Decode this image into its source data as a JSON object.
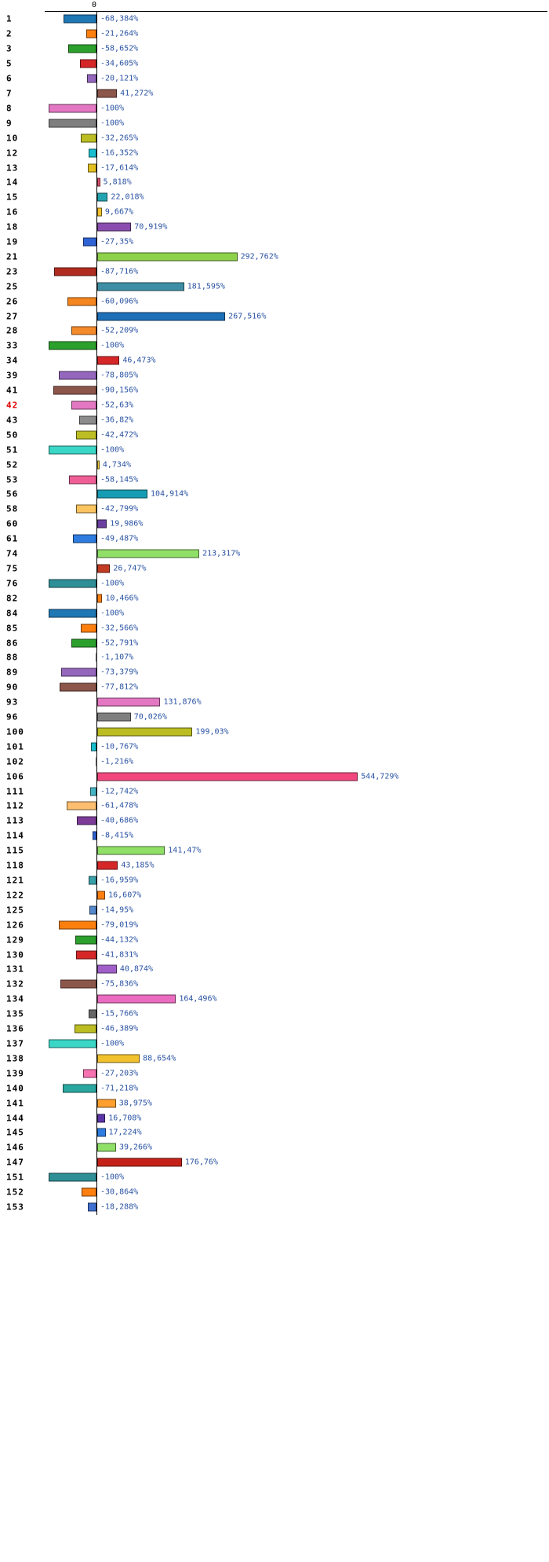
{
  "chart_data": {
    "type": "bar",
    "orientation": "horizontal",
    "title": "",
    "xlabel": "",
    "ylabel": "",
    "unit": "%",
    "axis_zero_label": "0",
    "grid": false,
    "legend": false,
    "value_label_color": "#2952a3",
    "rows": [
      {
        "label": "1",
        "value": -68.384,
        "display": "-68,384%",
        "color": "#1f77b4"
      },
      {
        "label": "2",
        "value": -21.264,
        "display": "-21,264%",
        "color": "#ff7f0e"
      },
      {
        "label": "3",
        "value": -58.652,
        "display": "-58,652%",
        "color": "#2ca02c"
      },
      {
        "label": "5",
        "value": -34.605,
        "display": "-34,605%",
        "color": "#d62728"
      },
      {
        "label": "6",
        "value": -20.121,
        "display": "-20,121%",
        "color": "#9467bd"
      },
      {
        "label": "7",
        "value": 41.272,
        "display": "41,272%",
        "color": "#8c564b"
      },
      {
        "label": "8",
        "value": -100,
        "display": "-100%",
        "color": "#e377c2"
      },
      {
        "label": "9",
        "value": -100,
        "display": "-100%",
        "color": "#7f7f7f"
      },
      {
        "label": "10",
        "value": -32.265,
        "display": "-32,265%",
        "color": "#bcbd22"
      },
      {
        "label": "12",
        "value": -16.352,
        "display": "-16,352%",
        "color": "#17becf"
      },
      {
        "label": "13",
        "value": -17.614,
        "display": "-17,614%",
        "color": "#e3c01f"
      },
      {
        "label": "14",
        "value": 5.818,
        "display": "5,818%",
        "color": "#e0506e"
      },
      {
        "label": "15",
        "value": 22.018,
        "display": "22,018%",
        "color": "#22a5b0"
      },
      {
        "label": "16",
        "value": 9.667,
        "display": "9,667%",
        "color": "#f2c12e"
      },
      {
        "label": "18",
        "value": 70.919,
        "display": "70,919%",
        "color": "#8a4caf"
      },
      {
        "label": "19",
        "value": -27.35,
        "display": "-27,35%",
        "color": "#2f63d6"
      },
      {
        "label": "21",
        "value": 292.762,
        "display": "292,762%",
        "color": "#8ed14a"
      },
      {
        "label": "23",
        "value": -87.716,
        "display": "-87,716%",
        "color": "#b02c20"
      },
      {
        "label": "25",
        "value": 181.595,
        "display": "181,595%",
        "color": "#3e8fa5"
      },
      {
        "label": "26",
        "value": -60.096,
        "display": "-60,096%",
        "color": "#f5861f"
      },
      {
        "label": "27",
        "value": 267.516,
        "display": "267,516%",
        "color": "#1d6fb8"
      },
      {
        "label": "28",
        "value": -52.209,
        "display": "-52,209%",
        "color": "#f58a2a"
      },
      {
        "label": "33",
        "value": -100,
        "display": "-100%",
        "color": "#2ca02c"
      },
      {
        "label": "34",
        "value": 46.473,
        "display": "46,473%",
        "color": "#d62728"
      },
      {
        "label": "39",
        "value": -78.805,
        "display": "-78,805%",
        "color": "#9467bd"
      },
      {
        "label": "41",
        "value": -90.156,
        "display": "-90,156%",
        "color": "#8c564b"
      },
      {
        "label": "42",
        "value": -52.63,
        "display": "-52,63%",
        "color": "#e377c2",
        "label_color": "#dd0000"
      },
      {
        "label": "43",
        "value": -36.82,
        "display": "-36,82%",
        "color": "#8c8c8c"
      },
      {
        "label": "50",
        "value": -42.472,
        "display": "-42,472%",
        "color": "#bcbd22"
      },
      {
        "label": "51",
        "value": -100,
        "display": "-100%",
        "color": "#3ad6c6"
      },
      {
        "label": "52",
        "value": 4.734,
        "display": "4,734%",
        "color": "#e8c93a"
      },
      {
        "label": "53",
        "value": -58.145,
        "display": "-58,145%",
        "color": "#ef5f95"
      },
      {
        "label": "56",
        "value": 104.914,
        "display": "104,914%",
        "color": "#169db3"
      },
      {
        "label": "58",
        "value": -42.799,
        "display": "-42,799%",
        "color": "#fcc45f"
      },
      {
        "label": "60",
        "value": 19.986,
        "display": "19,986%",
        "color": "#6a3fa0"
      },
      {
        "label": "61",
        "value": -49.487,
        "display": "-49,487%",
        "color": "#2e7ce0"
      },
      {
        "label": "74",
        "value": 213.317,
        "display": "213,317%",
        "color": "#90e068"
      },
      {
        "label": "75",
        "value": 26.747,
        "display": "26,747%",
        "color": "#c23b22"
      },
      {
        "label": "76",
        "value": -100,
        "display": "-100%",
        "color": "#2e8f96"
      },
      {
        "label": "82",
        "value": 10.466,
        "display": "10,466%",
        "color": "#ff7f0e"
      },
      {
        "label": "84",
        "value": -100,
        "display": "-100%",
        "color": "#1f77b4"
      },
      {
        "label": "85",
        "value": -32.566,
        "display": "-32,566%",
        "color": "#ff7f0e"
      },
      {
        "label": "86",
        "value": -52.791,
        "display": "-52,791%",
        "color": "#2ca02c"
      },
      {
        "label": "88",
        "value": -1.107,
        "display": "-1,107%",
        "color": "#999999"
      },
      {
        "label": "89",
        "value": -73.379,
        "display": "-73,379%",
        "color": "#9467bd"
      },
      {
        "label": "90",
        "value": -77.812,
        "display": "-77,812%",
        "color": "#8c564b"
      },
      {
        "label": "93",
        "value": 131.876,
        "display": "131,876%",
        "color": "#e377c2"
      },
      {
        "label": "96",
        "value": 70.026,
        "display": "70,026%",
        "color": "#7f7f7f"
      },
      {
        "label": "100",
        "value": 199.03,
        "display": "199,03%",
        "color": "#bcbd22"
      },
      {
        "label": "101",
        "value": -10.767,
        "display": "-10,767%",
        "color": "#17becf"
      },
      {
        "label": "102",
        "value": -1.216,
        "display": "-1,216%",
        "color": "#999999"
      },
      {
        "label": "106",
        "value": 544.729,
        "display": "544,729%",
        "color": "#f2477e"
      },
      {
        "label": "111",
        "value": -12.742,
        "display": "-12,742%",
        "color": "#45b5c5"
      },
      {
        "label": "112",
        "value": -61.478,
        "display": "-61,478%",
        "color": "#fdbf6f"
      },
      {
        "label": "113",
        "value": -40.686,
        "display": "-40,686%",
        "color": "#7d3c98"
      },
      {
        "label": "114",
        "value": -8.415,
        "display": "-8,415%",
        "color": "#2f63d6"
      },
      {
        "label": "115",
        "value": 141.47,
        "display": "141,47%",
        "color": "#90e068"
      },
      {
        "label": "118",
        "value": 43.185,
        "display": "43,185%",
        "color": "#d62728"
      },
      {
        "label": "121",
        "value": -16.959,
        "display": "-16,959%",
        "color": "#3aa0a8"
      },
      {
        "label": "122",
        "value": 16.607,
        "display": "16,607%",
        "color": "#ff7f0e"
      },
      {
        "label": "125",
        "value": -14.95,
        "display": "-14,95%",
        "color": "#5588cc"
      },
      {
        "label": "126",
        "value": -79.019,
        "display": "-79,019%",
        "color": "#ff7f0e"
      },
      {
        "label": "129",
        "value": -44.132,
        "display": "-44,132%",
        "color": "#2ca02c"
      },
      {
        "label": "130",
        "value": -41.831,
        "display": "-41,831%",
        "color": "#d62728"
      },
      {
        "label": "131",
        "value": 40.874,
        "display": "40,874%",
        "color": "#a05fc8"
      },
      {
        "label": "132",
        "value": -75.836,
        "display": "-75,836%",
        "color": "#8c564b"
      },
      {
        "label": "134",
        "value": 164.496,
        "display": "164,496%",
        "color": "#ea6cc0"
      },
      {
        "label": "135",
        "value": -15.766,
        "display": "-15,766%",
        "color": "#666666"
      },
      {
        "label": "136",
        "value": -46.389,
        "display": "-46,389%",
        "color": "#bcbd22"
      },
      {
        "label": "137",
        "value": -100,
        "display": "-100%",
        "color": "#3ad6c6"
      },
      {
        "label": "138",
        "value": 88.654,
        "display": "88,654%",
        "color": "#f2c12e"
      },
      {
        "label": "139",
        "value": -27.203,
        "display": "-27,203%",
        "color": "#f772b0"
      },
      {
        "label": "140",
        "value": -71.218,
        "display": "-71,218%",
        "color": "#2aa8a0"
      },
      {
        "label": "141",
        "value": 38.975,
        "display": "38,975%",
        "color": "#ffa02e"
      },
      {
        "label": "144",
        "value": 16.708,
        "display": "16,708%",
        "color": "#5c35a8"
      },
      {
        "label": "145",
        "value": 17.224,
        "display": "17,224%",
        "color": "#2e7ce0"
      },
      {
        "label": "146",
        "value": 39.266,
        "display": "39,266%",
        "color": "#90e068"
      },
      {
        "label": "147",
        "value": 176.76,
        "display": "176,76%",
        "color": "#c42218"
      },
      {
        "label": "151",
        "value": -100,
        "display": "-100%",
        "color": "#2e8f96"
      },
      {
        "label": "152",
        "value": -30.864,
        "display": "-30,864%",
        "color": "#ff7f0e"
      },
      {
        "label": "153",
        "value": -18.288,
        "display": "-18,288%",
        "color": "#3f6fd0"
      }
    ]
  }
}
